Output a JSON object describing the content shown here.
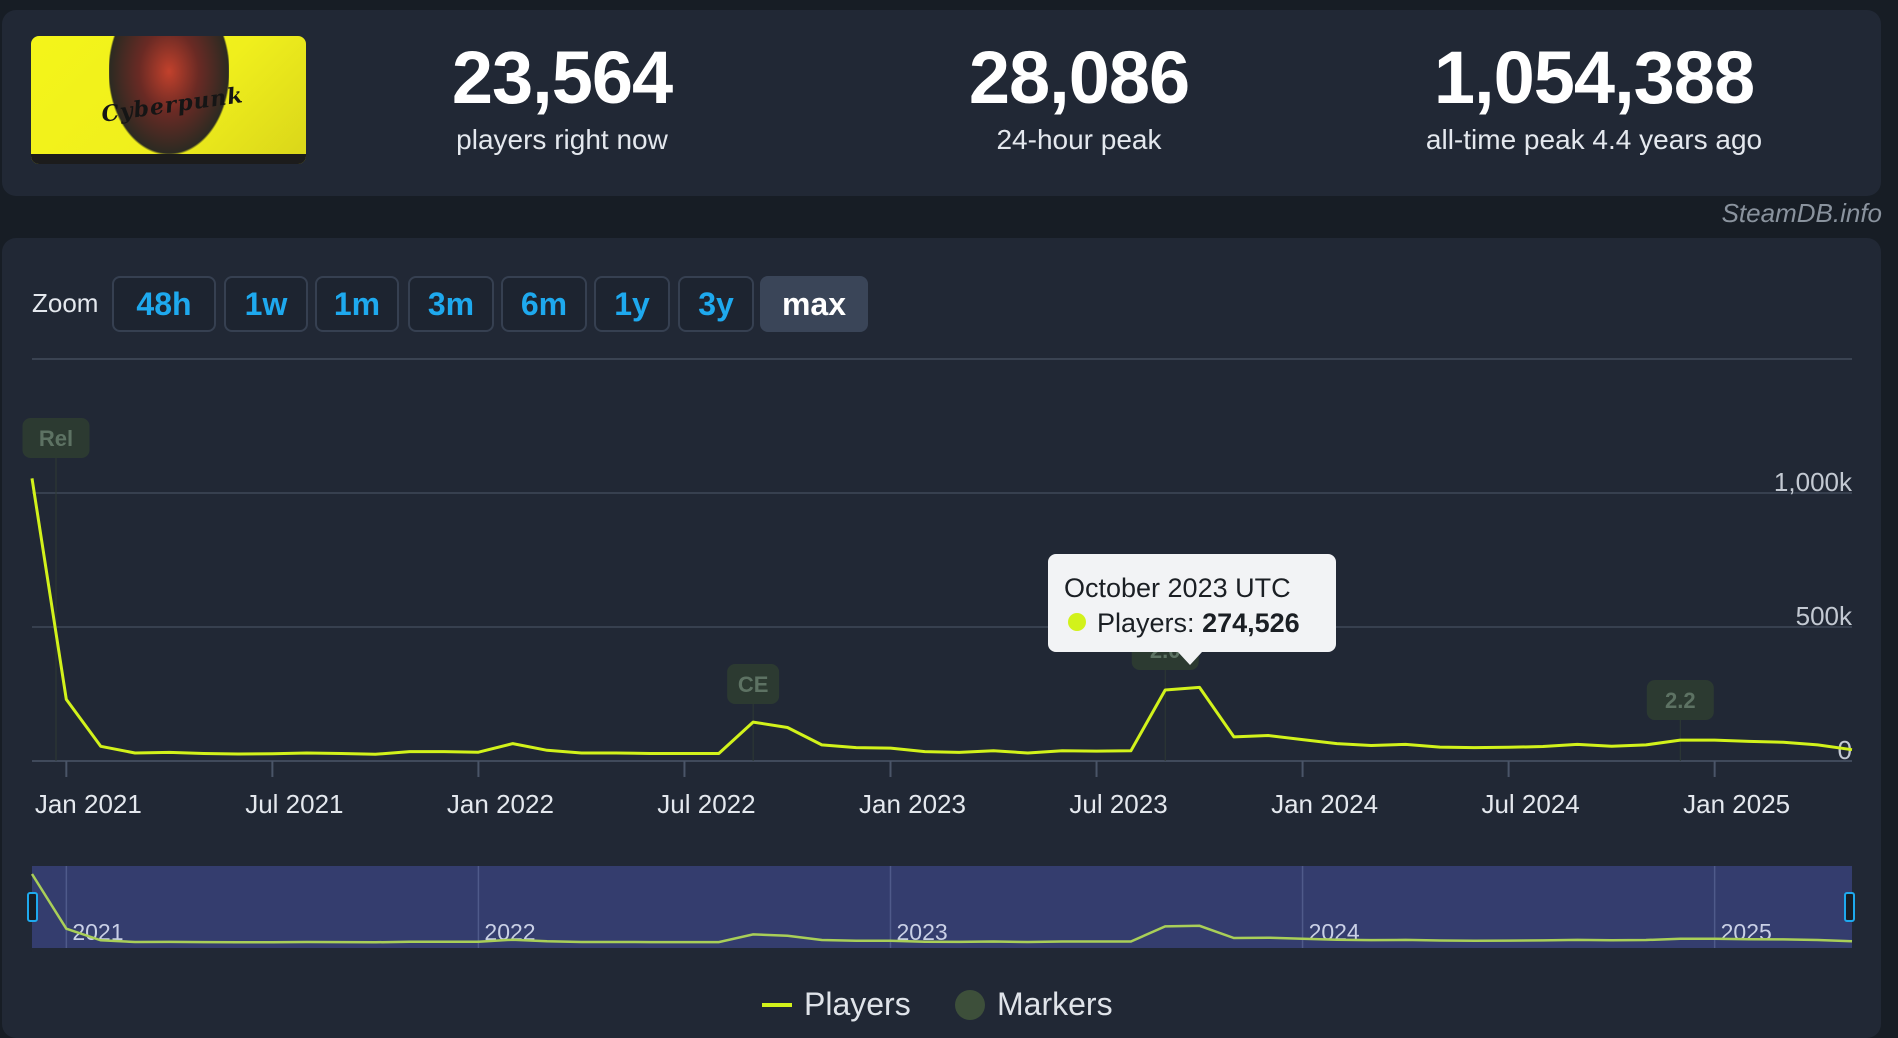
{
  "header": {
    "game_title": "Cyberpunk",
    "stats": [
      {
        "value": "23,564",
        "label": "players right now"
      },
      {
        "value": "28,086",
        "label": "24-hour peak"
      },
      {
        "value": "1,054,388",
        "label": "all-time peak 4.4 years ago"
      }
    ]
  },
  "credit": "SteamDB.info",
  "zoom": {
    "label": "Zoom",
    "options": [
      "48h",
      "1w",
      "1m",
      "3m",
      "6m",
      "1y",
      "3y",
      "max"
    ],
    "selected": "max"
  },
  "tooltip": {
    "title": "October 2023 UTC",
    "series": "Players:",
    "value": "274,526"
  },
  "legend": {
    "players": "Players",
    "markers": "Markers"
  },
  "colors": {
    "line": "#d2f21b",
    "accent": "#1ea9ee",
    "marker": "#3d4f3a",
    "navigator_bg": "#343d6e"
  },
  "chart_data": {
    "type": "line",
    "title": "",
    "xlabel": "",
    "ylabel": "",
    "grid": true,
    "legend_position": "bottom-center",
    "x_tick_labels": [
      "Jan 2021",
      "Jul 2021",
      "Jan 2022",
      "Jul 2022",
      "Jan 2023",
      "Jul 2023",
      "Jan 2024",
      "Jul 2024",
      "Jan 2025"
    ],
    "y_tick_labels": [
      "0",
      "500k",
      "1,000k"
    ],
    "ylim": [
      0,
      1000000
    ],
    "navigator_labels": [
      "2021",
      "2022",
      "2023",
      "2024",
      "2025"
    ],
    "series": [
      {
        "name": "Players",
        "x": [
          "2020-12",
          "2021-01",
          "2021-02",
          "2021-03",
          "2021-04",
          "2021-05",
          "2021-06",
          "2021-07",
          "2021-08",
          "2021-09",
          "2021-10",
          "2021-11",
          "2021-12",
          "2022-01",
          "2022-02",
          "2022-03",
          "2022-04",
          "2022-05",
          "2022-06",
          "2022-07",
          "2022-08",
          "2022-09",
          "2022-10",
          "2022-11",
          "2022-12",
          "2023-01",
          "2023-02",
          "2023-03",
          "2023-04",
          "2023-05",
          "2023-06",
          "2023-07",
          "2023-08",
          "2023-09",
          "2023-10",
          "2023-11",
          "2023-12",
          "2024-01",
          "2024-02",
          "2024-03",
          "2024-04",
          "2024-05",
          "2024-06",
          "2024-07",
          "2024-08",
          "2024-09",
          "2024-10",
          "2024-11",
          "2024-12",
          "2025-01",
          "2025-02",
          "2025-03",
          "2025-04",
          "2025-05"
        ],
        "values": [
          1054388,
          230000,
          55000,
          30000,
          32000,
          28000,
          26000,
          27000,
          30000,
          28000,
          25000,
          35000,
          35000,
          33000,
          65000,
          40000,
          30000,
          30000,
          28000,
          28000,
          28000,
          145000,
          125000,
          60000,
          50000,
          48000,
          35000,
          32000,
          38000,
          30000,
          38000,
          37000,
          38000,
          265000,
          274526,
          90000,
          95000,
          80000,
          65000,
          58000,
          62000,
          52000,
          50000,
          51000,
          54000,
          62000,
          55000,
          60000,
          78000,
          78000,
          73000,
          70000,
          60000,
          42000
        ]
      }
    ],
    "markers": [
      {
        "label": "Rel",
        "x": "2020-12"
      },
      {
        "label": "CE",
        "x": "2022-09"
      },
      {
        "label": "2.0",
        "x": "2023-09"
      },
      {
        "label": "2.2",
        "x": "2024-12"
      }
    ]
  }
}
